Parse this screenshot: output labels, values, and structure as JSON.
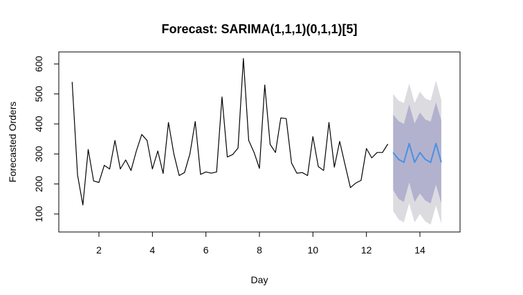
{
  "chart_data": {
    "type": "line",
    "title": "Forecast: SARIMA(1,1,1)(0,1,1)[5]",
    "xlabel": "Day",
    "ylabel": "Forecasted Orders",
    "xlim": [
      0.5,
      15.5
    ],
    "ylim": [
      40,
      640
    ],
    "xticks": [
      2,
      4,
      6,
      8,
      10,
      12,
      14
    ],
    "yticks": [
      100,
      200,
      300,
      400,
      500,
      600
    ],
    "grid": false,
    "legend": "none",
    "colors": {
      "observed": "#000000",
      "forecast": "#4a90e2",
      "band80": "#b2b2cf",
      "band95": "#dcdce0"
    },
    "observed": {
      "x": [
        1.0,
        1.2,
        1.4,
        1.6,
        1.8,
        2.0,
        2.2,
        2.4,
        2.6,
        2.8,
        3.0,
        3.2,
        3.4,
        3.6,
        3.8,
        4.0,
        4.2,
        4.4,
        4.6,
        4.8,
        5.0,
        5.2,
        5.4,
        5.6,
        5.8,
        6.0,
        6.2,
        6.4,
        6.6,
        6.8,
        7.0,
        7.2,
        7.4,
        7.6,
        7.8,
        8.0,
        8.2,
        8.4,
        8.6,
        8.8,
        9.0,
        9.2,
        9.4,
        9.6,
        9.8,
        10.0,
        10.2,
        10.4,
        10.6,
        10.8,
        11.0,
        11.2,
        11.4,
        11.6,
        11.8,
        12.0,
        12.2,
        12.4,
        12.6,
        12.8
      ],
      "y": [
        540,
        230,
        130,
        315,
        210,
        205,
        262,
        250,
        345,
        250,
        280,
        245,
        310,
        365,
        345,
        250,
        310,
        235,
        405,
        300,
        228,
        238,
        300,
        408,
        232,
        240,
        236,
        240,
        490,
        290,
        298,
        320,
        618,
        345,
        305,
        252,
        530,
        332,
        305,
        420,
        418,
        270,
        236,
        238,
        228,
        358,
        258,
        245,
        405,
        256,
        342,
        265,
        188,
        203,
        212,
        318,
        287,
        305,
        305,
        333
      ]
    },
    "forecast": {
      "x": [
        13.0,
        13.2,
        13.4,
        13.6,
        13.8,
        14.0,
        14.2,
        14.4,
        14.6,
        14.8
      ],
      "mean": [
        305,
        282,
        272,
        335,
        272,
        305,
        282,
        272,
        335,
        272
      ],
      "lo80": [
        180,
        150,
        140,
        205,
        140,
        168,
        145,
        135,
        198,
        135
      ],
      "hi80": [
        432,
        410,
        400,
        465,
        402,
        438,
        415,
        408,
        472,
        412
      ],
      "lo95": [
        110,
        82,
        72,
        135,
        72,
        100,
        75,
        65,
        128,
        68
      ],
      "hi95": [
        500,
        478,
        470,
        535,
        470,
        508,
        485,
        478,
        545,
        480
      ]
    }
  }
}
